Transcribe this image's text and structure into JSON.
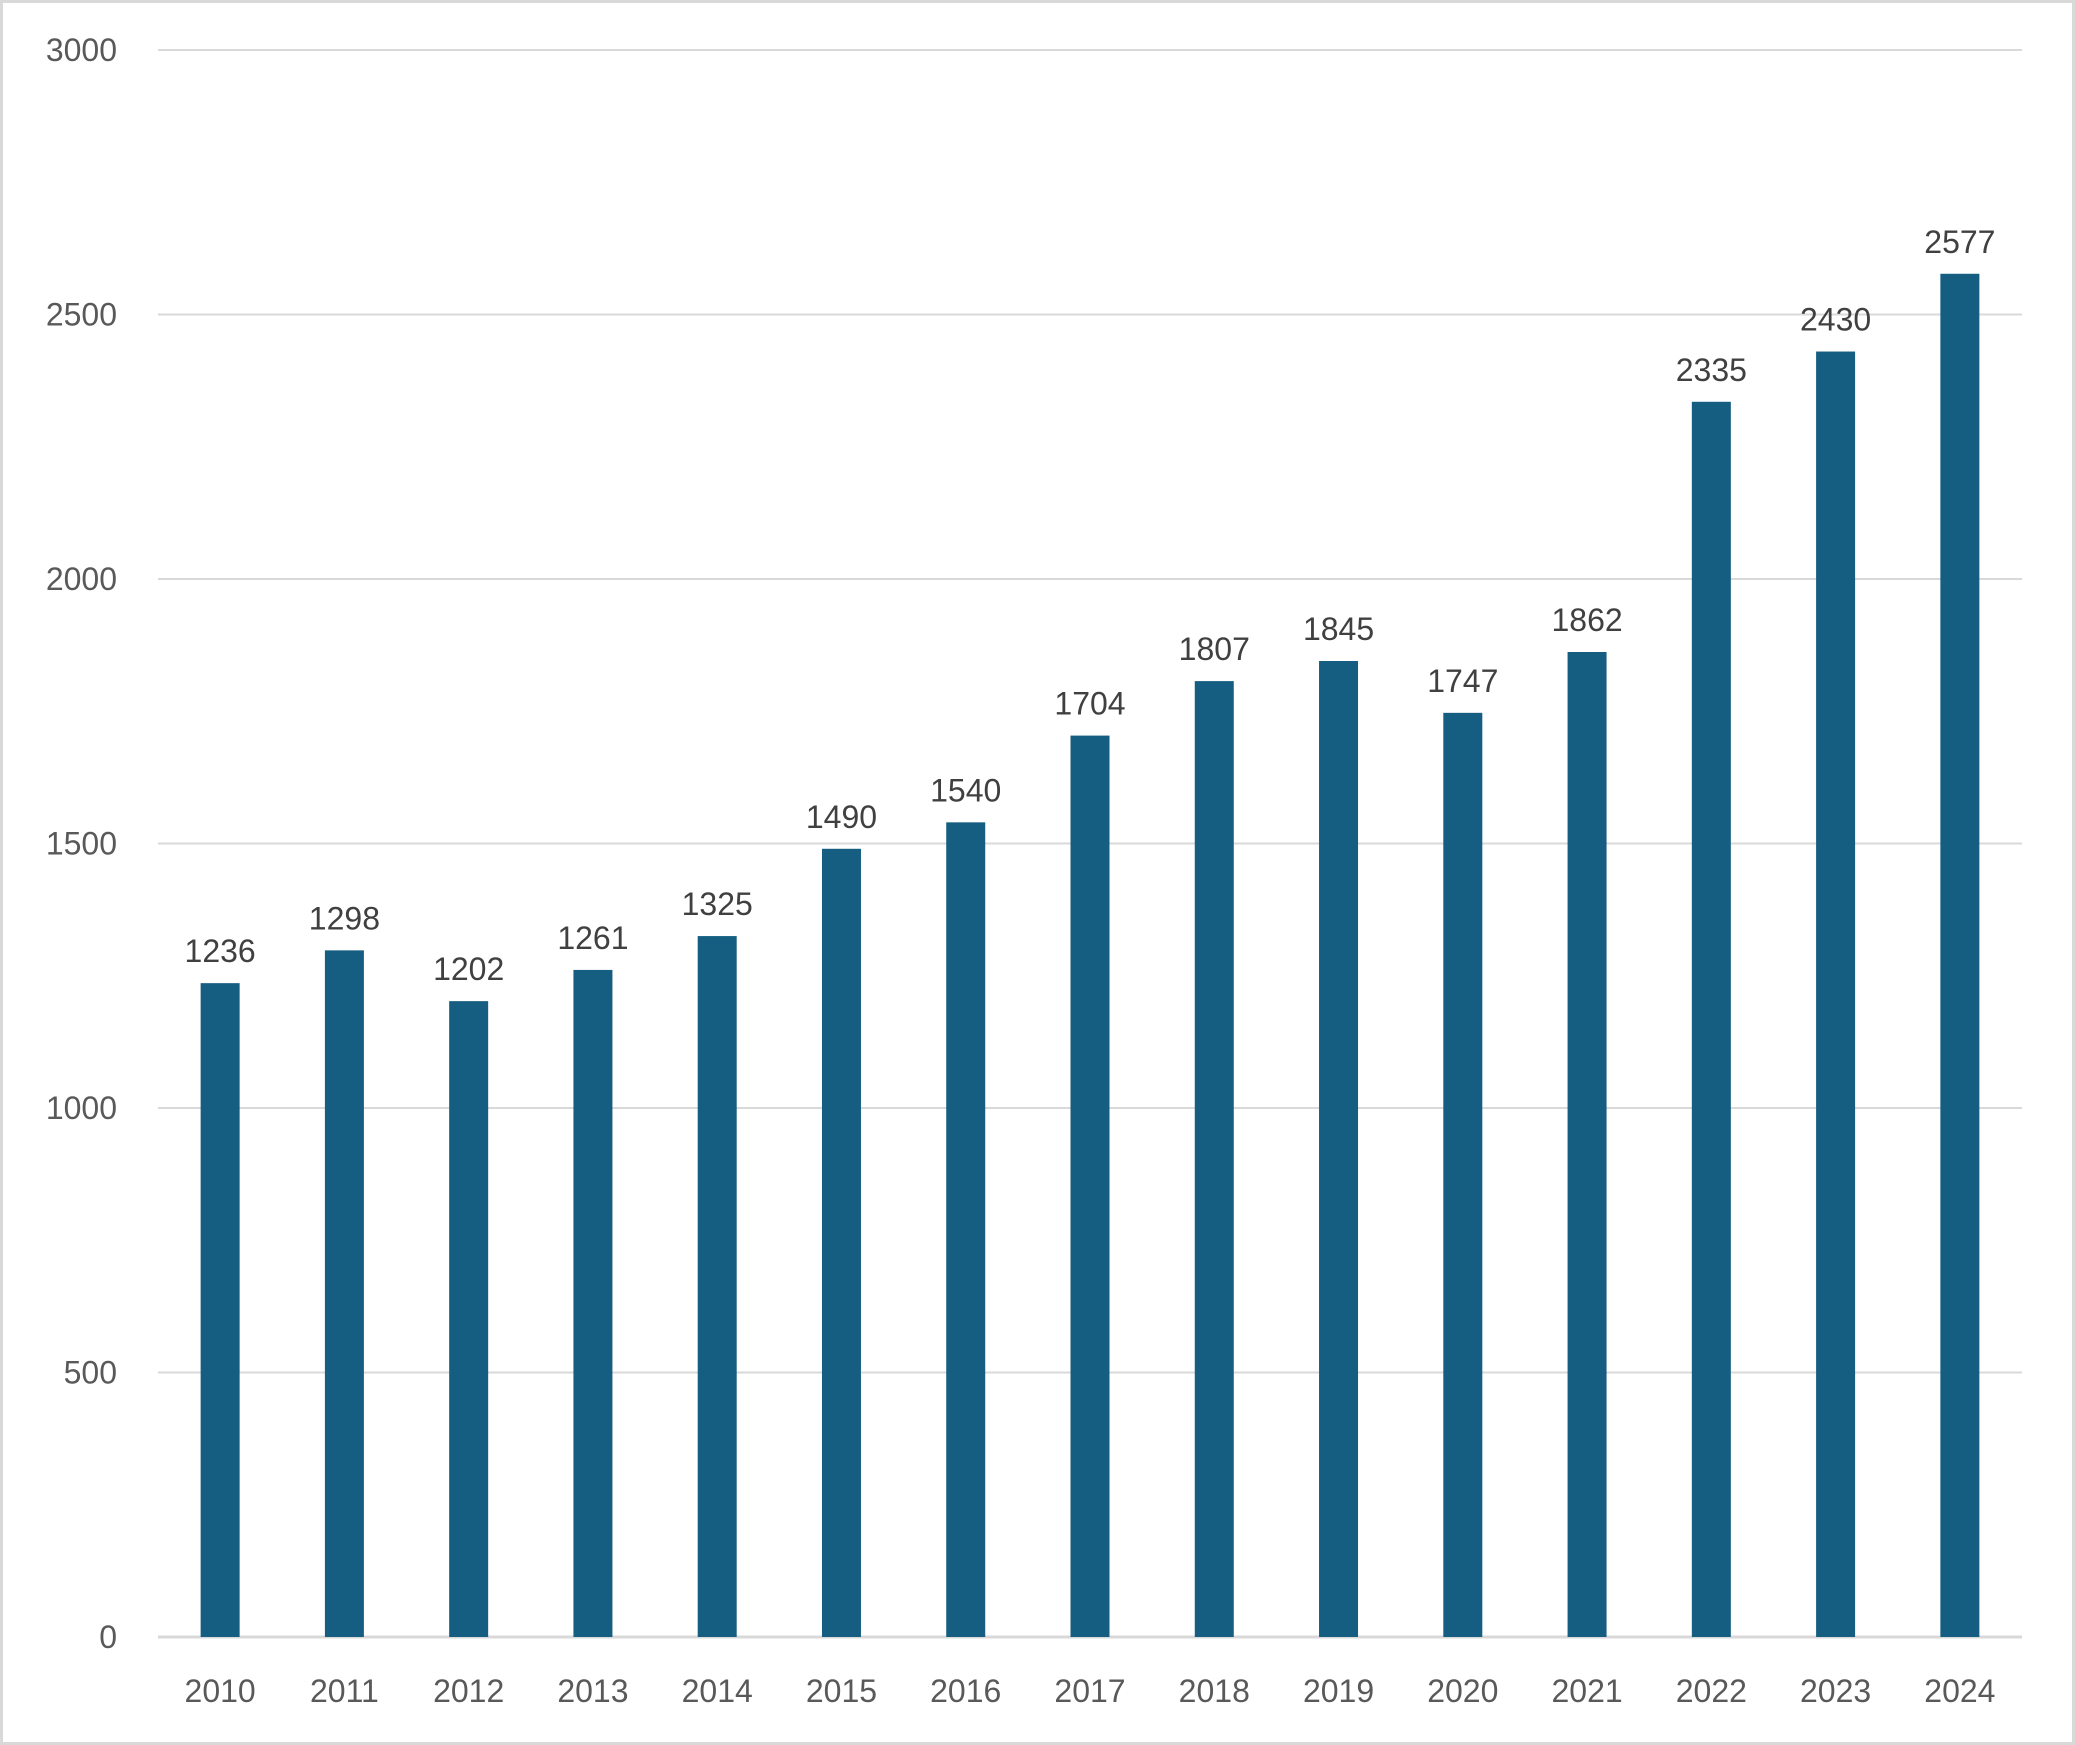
{
  "chart_data": {
    "type": "bar",
    "title": "",
    "xlabel": "",
    "ylabel": "",
    "categories": [
      "2010",
      "2011",
      "2012",
      "2013",
      "2014",
      "2015",
      "2016",
      "2017",
      "2018",
      "2019",
      "2020",
      "2021",
      "2022",
      "2023",
      "2024"
    ],
    "values": [
      1236,
      1298,
      1202,
      1261,
      1325,
      1490,
      1540,
      1704,
      1807,
      1845,
      1747,
      1862,
      2335,
      2430,
      2577
    ],
    "ylim": [
      0,
      3000
    ],
    "yticks": [
      0,
      500,
      1000,
      1500,
      2000,
      2500,
      3000
    ],
    "grid": true,
    "legend": "none",
    "data_labels": true,
    "colors": {
      "bar": "#165e81",
      "grid": "#d9d9d9",
      "text": "#595959",
      "label": "#404040"
    }
  }
}
